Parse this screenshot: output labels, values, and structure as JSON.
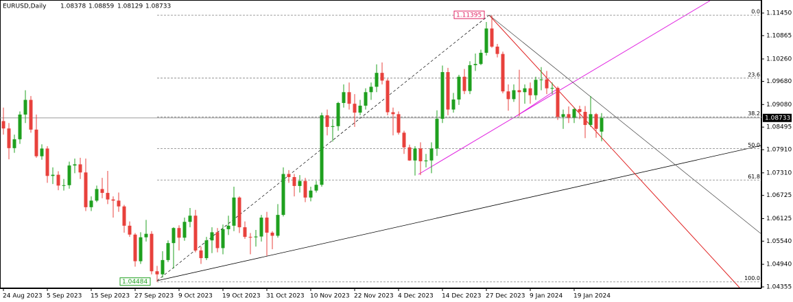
{
  "chart_data": {
    "type": "candlestick",
    "symbol": "EURUSD,Daily",
    "header_values": [
      1.08378,
      1.08859,
      1.08129,
      1.08733
    ],
    "categories": [
      "24 Aug 2023",
      null,
      null,
      null,
      null,
      null,
      null,
      null,
      "5 Sep 2023",
      null,
      null,
      null,
      null,
      null,
      null,
      null,
      "15 Sep 2023",
      null,
      null,
      null,
      null,
      null,
      null,
      null,
      "27 Sep 2023",
      null,
      null,
      null,
      null,
      null,
      null,
      null,
      "9 Oct 2023",
      null,
      null,
      null,
      null,
      null,
      null,
      null,
      "19 Oct 2023",
      null,
      null,
      null,
      null,
      null,
      null,
      null,
      "31 Oct 2023",
      null,
      null,
      null,
      null,
      null,
      null,
      null,
      "10 Nov 2023",
      null,
      null,
      null,
      null,
      null,
      null,
      null,
      "22 Nov 2023",
      null,
      null,
      null,
      null,
      null,
      null,
      null,
      "4 Dec 2023",
      null,
      null,
      null,
      null,
      null,
      null,
      null,
      "14 Dec 2023",
      null,
      null,
      null,
      null,
      null,
      null,
      null,
      "27 Dec 2023",
      null,
      null,
      null,
      null,
      null,
      null,
      null,
      "9 Jan 2024",
      null,
      null,
      null,
      null,
      null,
      null,
      null,
      "19 Jan 2024",
      null,
      null,
      null,
      null,
      null
    ],
    "open": [
      1.0865,
      1.0846,
      1.0795,
      1.0818,
      1.0882,
      1.092,
      1.0843,
      1.0774,
      1.0794,
      1.0723,
      1.0726,
      1.0698,
      1.0699,
      1.075,
      1.0753,
      1.0732,
      1.0642,
      1.0659,
      1.0689,
      1.0679,
      1.0662,
      1.0659,
      1.0644,
      1.0594,
      1.0571,
      1.0502,
      1.0564,
      1.0573,
      1.0476,
      1.0468,
      1.0505,
      1.0549,
      1.0588,
      1.0563,
      1.0604,
      1.062,
      1.053,
      1.051,
      1.0556,
      1.0577,
      1.0536,
      1.0585,
      1.0594,
      1.0667,
      1.059,
      1.0565,
      1.0564,
      1.0566,
      1.0615,
      1.0576,
      1.0568,
      1.0622,
      1.0728,
      1.072,
      1.0697,
      1.071,
      1.0667,
      1.0685,
      1.07,
      1.088,
      1.085,
      1.0852,
      1.0912,
      1.094,
      1.091,
      1.0887,
      1.0905,
      1.094,
      1.0954,
      1.099,
      1.097,
      1.0888,
      1.0883,
      1.0835,
      1.0797,
      1.0763,
      1.0794,
      1.0761,
      1.0763,
      1.0794,
      1.0871,
      1.0992,
      1.0895,
      1.0921,
      1.098,
      1.0943,
      1.101,
      1.1013,
      1.1042,
      1.1105,
      1.1058,
      1.1039,
      1.0942,
      1.0922,
      1.0945,
      1.094,
      1.095,
      1.0932,
      1.0972,
      1.0973,
      1.095,
      1.0951,
      1.0876,
      1.0883,
      1.0874,
      1.0896,
      1.0889,
      1.0855,
      1.0883,
      1.08378
    ],
    "high": [
      1.09,
      1.086,
      1.083,
      1.089,
      1.0945,
      1.093,
      1.0882,
      1.0805,
      1.08,
      1.0745,
      1.0735,
      1.0715,
      1.076,
      1.0768,
      1.077,
      1.0768,
      1.067,
      1.0698,
      1.0718,
      1.0736,
      1.067,
      1.068,
      1.0648,
      1.0605,
      1.0575,
      1.0577,
      1.0609,
      1.058,
      1.049,
      1.0528,
      1.0556,
      1.059,
      1.0595,
      1.0615,
      1.064,
      1.0635,
      1.054,
      1.0565,
      1.059,
      1.0588,
      1.0597,
      1.062,
      1.0695,
      1.067,
      1.0605,
      1.0575,
      1.0583,
      1.0622,
      1.063,
      1.058,
      1.065,
      1.0745,
      1.0738,
      1.0728,
      1.0725,
      1.0718,
      1.0695,
      1.071,
      1.0887,
      1.0895,
      1.087,
      1.0915,
      1.096,
      1.0965,
      1.0935,
      1.092,
      1.095,
      1.0965,
      1.1012,
      1.1017,
      1.0975,
      1.09,
      1.089,
      1.084,
      1.0804,
      1.08,
      1.081,
      1.078,
      1.081,
      1.0893,
      1.1009,
      1.1003,
      1.0938,
      1.0985,
      1.1,
      1.102,
      1.104,
      1.105,
      1.1122,
      1.11395,
      1.1065,
      1.1045,
      1.096,
      1.096,
      1.0998,
      1.096,
      1.0965,
      1.098,
      1.1005,
      1.0995,
      1.0965,
      1.0955,
      1.0895,
      1.0903,
      1.09,
      1.0905,
      1.0904,
      1.093,
      1.0886,
      1.08859
    ],
    "low": [
      1.083,
      1.0766,
      1.0783,
      1.0806,
      1.086,
      1.0835,
      1.077,
      1.0765,
      1.0705,
      1.0702,
      1.0686,
      1.0685,
      1.069,
      1.073,
      1.0715,
      1.0632,
      1.0632,
      1.0655,
      1.0665,
      1.065,
      1.0615,
      1.063,
      1.0576,
      1.0565,
      1.0488,
      1.0495,
      1.0553,
      1.0468,
      1.04484,
      1.046,
      1.05,
      1.0483,
      1.053,
      1.0555,
      1.059,
      1.0525,
      1.0495,
      1.0505,
      1.0523,
      1.0525,
      1.052,
      1.057,
      1.058,
      1.0575,
      1.056,
      1.052,
      1.054,
      1.0553,
      1.0516,
      1.0533,
      1.0563,
      1.0618,
      1.0705,
      1.067,
      1.068,
      1.0655,
      1.0657,
      1.068,
      1.0695,
      1.0828,
      1.0812,
      1.084,
      1.09,
      1.0895,
      1.085,
      1.088,
      1.0895,
      1.092,
      1.094,
      1.096,
      1.088,
      1.0828,
      1.083,
      1.078,
      1.0762,
      1.0724,
      1.0725,
      1.0745,
      1.073,
      1.0775,
      1.086,
      1.088,
      1.0887,
      1.0907,
      1.0935,
      1.0935,
      1.0995,
      1.101,
      1.1035,
      1.1055,
      1.103,
      1.0937,
      1.0892,
      1.0915,
      1.0877,
      1.091,
      1.091,
      1.092,
      1.0945,
      1.0935,
      1.0935,
      1.0868,
      1.0845,
      1.086,
      1.086,
      1.087,
      1.0821,
      1.085,
      1.0822,
      1.08129
    ],
    "close": [
      1.0846,
      1.0795,
      1.0818,
      1.0882,
      1.092,
      1.0843,
      1.0774,
      1.0794,
      1.0723,
      1.0726,
      1.0698,
      1.0699,
      1.075,
      1.0753,
      1.0732,
      1.0642,
      1.0659,
      1.0689,
      1.0679,
      1.0662,
      1.0659,
      1.0644,
      1.0594,
      1.0571,
      1.0502,
      1.0564,
      1.0573,
      1.0476,
      1.0468,
      1.0505,
      1.0549,
      1.0588,
      1.0563,
      1.0604,
      1.062,
      1.053,
      1.051,
      1.0556,
      1.0577,
      1.0536,
      1.0585,
      1.0594,
      1.0667,
      1.059,
      1.0565,
      1.0564,
      1.0566,
      1.0615,
      1.0576,
      1.0568,
      1.0622,
      1.0728,
      1.072,
      1.0697,
      1.071,
      1.0667,
      1.0685,
      1.07,
      1.088,
      1.085,
      1.0852,
      1.0912,
      1.094,
      1.091,
      1.0887,
      1.0905,
      1.094,
      1.0954,
      1.099,
      1.097,
      1.0888,
      1.0883,
      1.0835,
      1.0797,
      1.0763,
      1.0794,
      1.0761,
      1.0763,
      1.0794,
      1.0871,
      1.0992,
      1.0895,
      1.0921,
      1.098,
      1.0943,
      1.101,
      1.1013,
      1.1042,
      1.1105,
      1.1058,
      1.1039,
      1.0942,
      1.0922,
      1.0945,
      1.094,
      1.095,
      1.0932,
      1.0972,
      1.0973,
      1.095,
      1.0951,
      1.0876,
      1.0883,
      1.0874,
      1.0896,
      1.0889,
      1.0855,
      1.0883,
      1.0845,
      1.08733
    ],
    "up_color": "#1fa01f",
    "down_color": "#e8413c",
    "ylim": [
      1.04319,
      1.11788
    ],
    "yticks": [
      {
        "value": 1.1145,
        "label": "1.11450"
      },
      {
        "value": 1.10865,
        "label": "1.10865"
      },
      {
        "value": 1.1026,
        "label": "1.10260"
      },
      {
        "value": 1.0968,
        "label": "1.09680"
      },
      {
        "value": 1.0908,
        "label": "1.09080"
      },
      {
        "value": 1.08495,
        "label": "1.08495"
      },
      {
        "value": 1.0791,
        "label": "1.07910"
      },
      {
        "value": 1.0731,
        "label": "1.07310"
      },
      {
        "value": 1.06725,
        "label": "1.06725"
      },
      {
        "value": 1.06125,
        "label": "1.06125"
      },
      {
        "value": 1.0554,
        "label": "1.05540"
      },
      {
        "value": 1.0494,
        "label": "1.04940"
      },
      {
        "value": 1.04355,
        "label": "1.04355"
      }
    ],
    "fibonacci": {
      "high": 1.11395,
      "low": 1.04484,
      "color": "#7f7f7f",
      "levels": [
        {
          "value": 0,
          "label": "0.0"
        },
        {
          "value": 23.6,
          "label": "23.6"
        },
        {
          "value": 38.2,
          "label": "38.2"
        },
        {
          "value": 50,
          "label": "50.0"
        },
        {
          "value": 61.8,
          "label": "61.8"
        },
        {
          "value": 100,
          "label": "100.0"
        }
      ]
    }
  }
}
